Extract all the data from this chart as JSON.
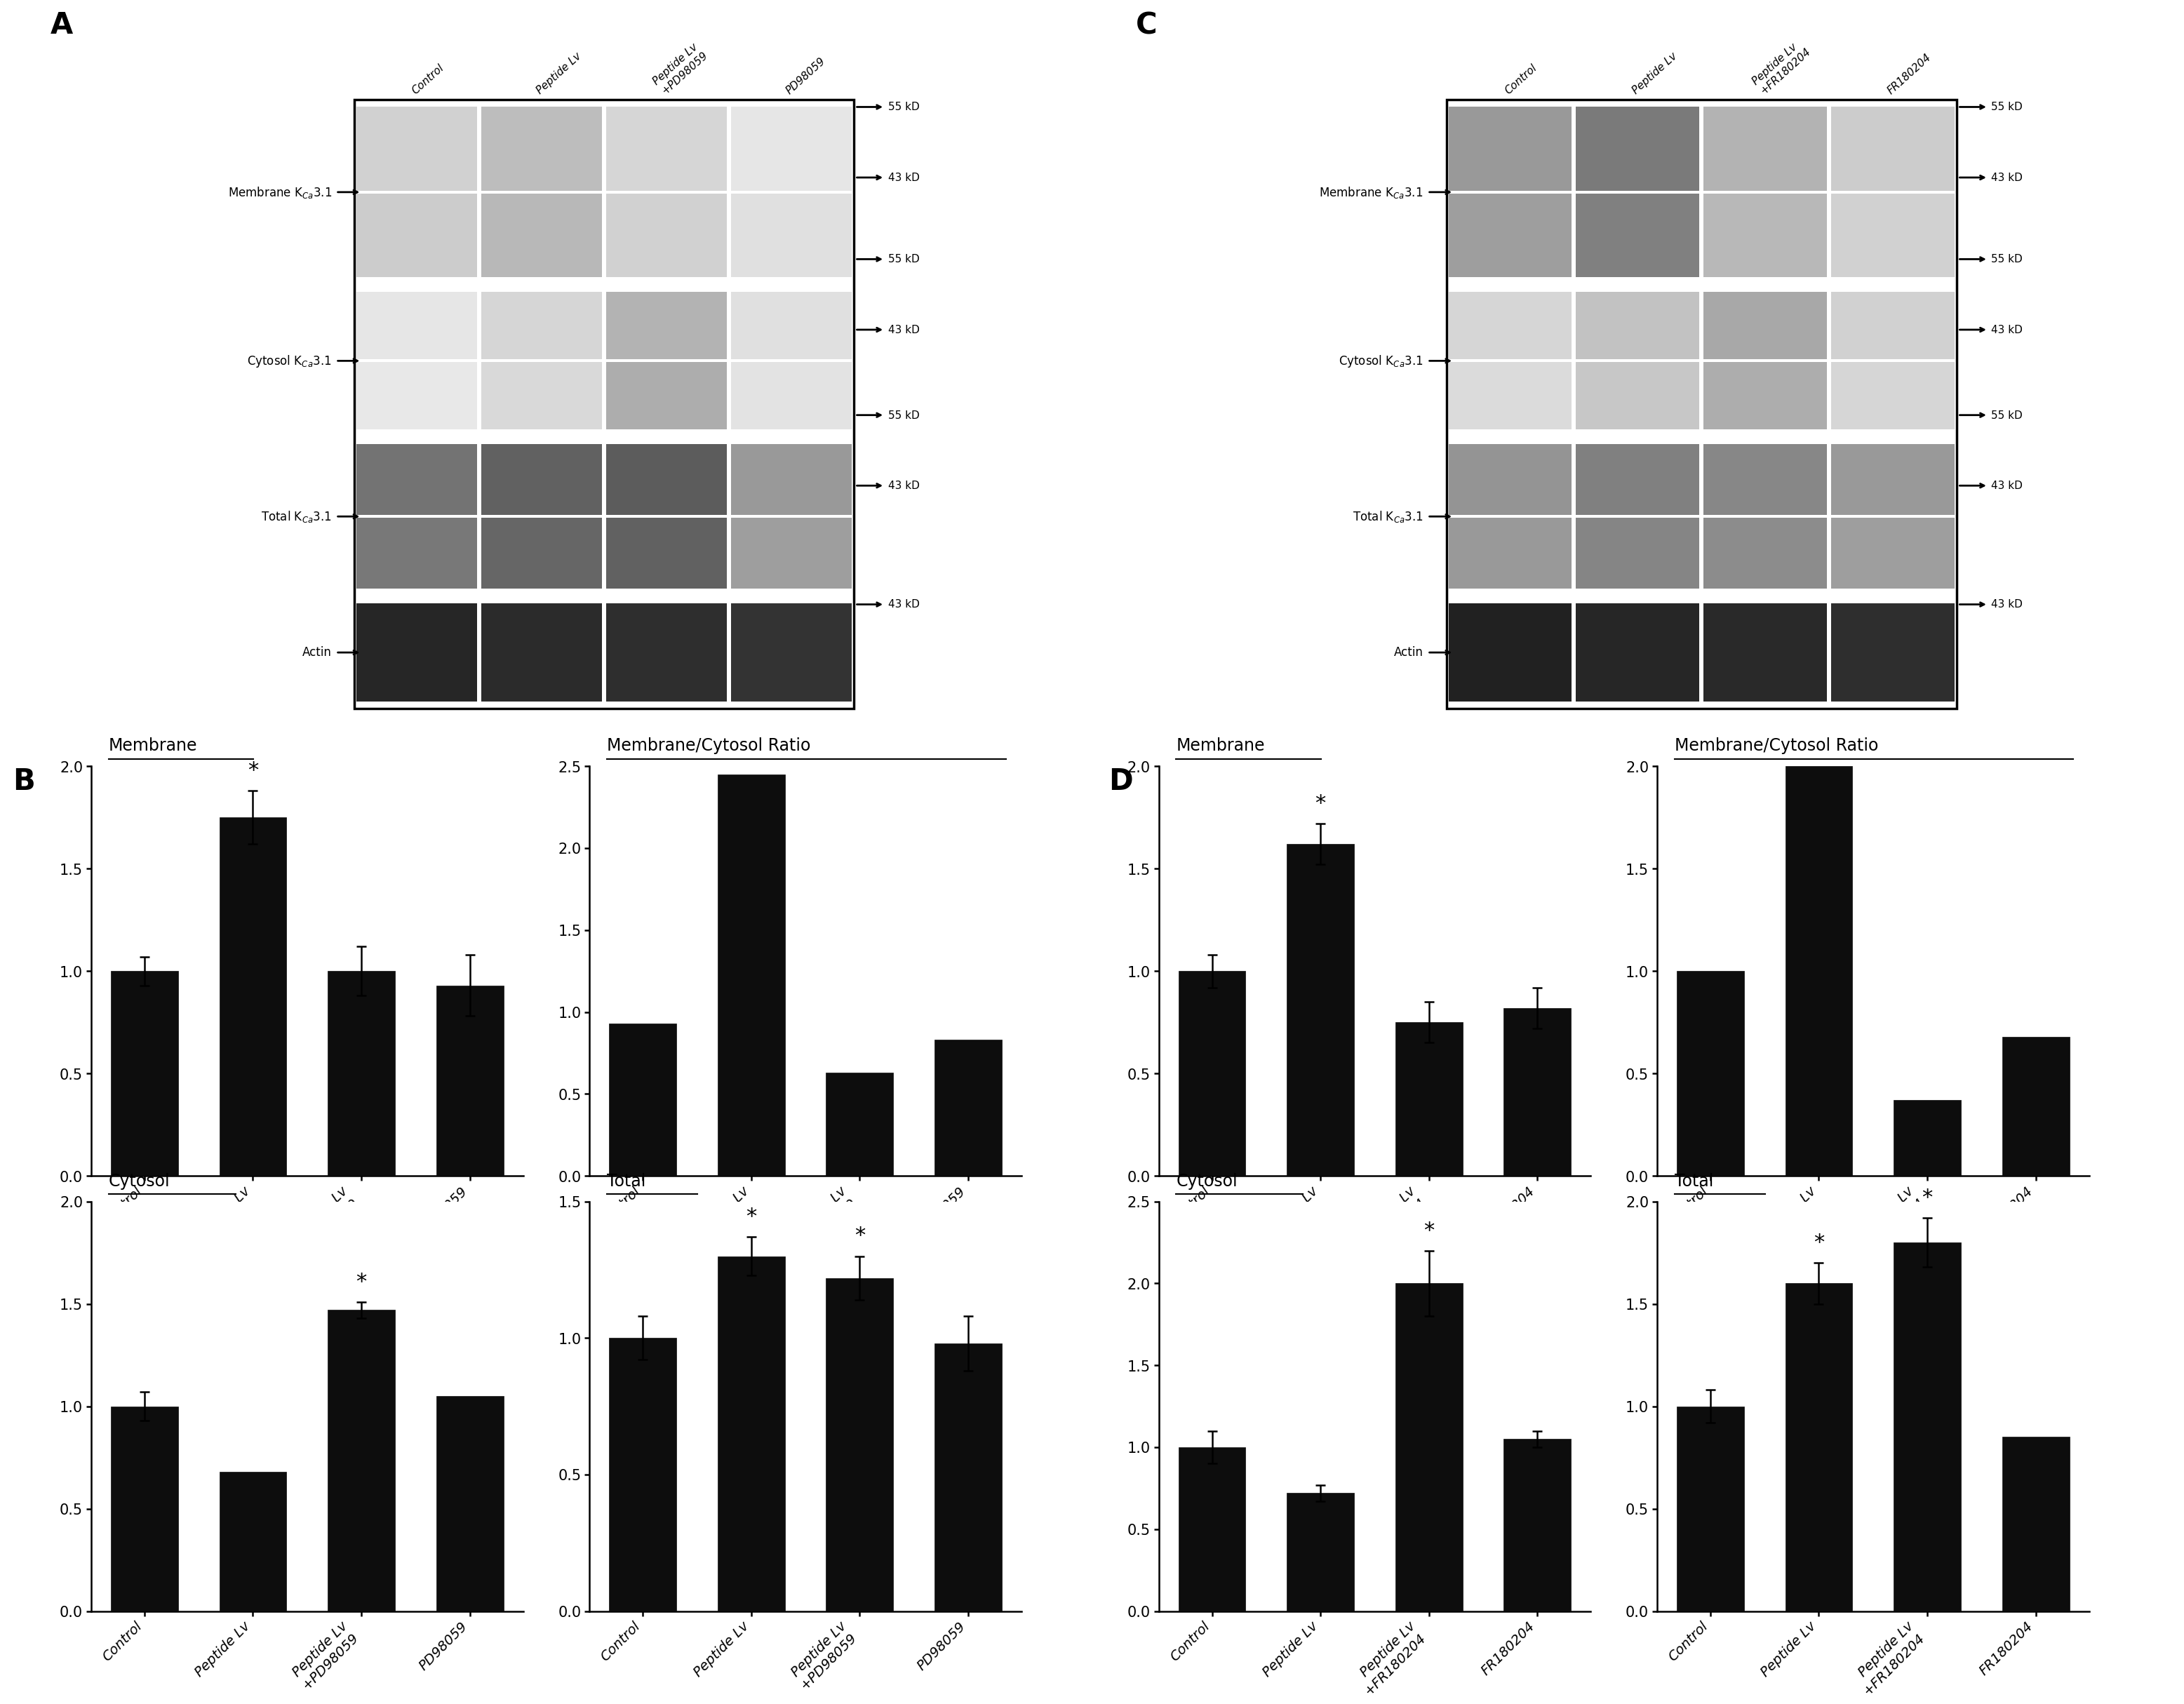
{
  "panel_B_membrane": {
    "values": [
      1.0,
      1.75,
      1.0,
      0.93
    ],
    "errors": [
      0.07,
      0.13,
      0.12,
      0.15
    ],
    "ylim": [
      0.0,
      2.0
    ],
    "yticks": [
      0.0,
      0.5,
      1.0,
      1.5,
      2.0
    ],
    "title": "Membrane",
    "star_idx": [
      1
    ],
    "categories": [
      "Control",
      "Peptide Lv",
      "Peptide Lv\n+PD98059",
      "PD98059"
    ]
  },
  "panel_B_ratio": {
    "values": [
      0.93,
      2.45,
      0.63,
      0.83
    ],
    "errors": [
      0.0,
      0.0,
      0.0,
      0.0
    ],
    "ylim": [
      0.0,
      2.5
    ],
    "yticks": [
      0.0,
      0.5,
      1.0,
      1.5,
      2.0,
      2.5
    ],
    "title": "Membrane/Cytosol Ratio",
    "star_idx": [],
    "categories": [
      "Control",
      "Peptide Lv",
      "Peptide Lv\n+PD98059",
      "PD98059"
    ]
  },
  "panel_B_cytosol": {
    "values": [
      1.0,
      0.68,
      1.47,
      1.05
    ],
    "errors": [
      0.07,
      0.0,
      0.04,
      0.0
    ],
    "ylim": [
      0.0,
      2.0
    ],
    "yticks": [
      0.0,
      0.5,
      1.0,
      1.5,
      2.0
    ],
    "title": "Cytosol",
    "star_idx": [
      2
    ],
    "categories": [
      "Control",
      "Peptide Lv",
      "Peptide Lv\n+PD98059",
      "PD98059"
    ]
  },
  "panel_B_total": {
    "values": [
      1.0,
      1.3,
      1.22,
      0.98
    ],
    "errors": [
      0.08,
      0.07,
      0.08,
      0.1
    ],
    "ylim": [
      0.0,
      1.5
    ],
    "yticks": [
      0.0,
      0.5,
      1.0,
      1.5
    ],
    "title": "Total",
    "star_idx": [
      1,
      2
    ],
    "categories": [
      "Control",
      "Peptide Lv",
      "Peptide Lv\n+PD98059",
      "PD98059"
    ]
  },
  "panel_D_membrane": {
    "values": [
      1.0,
      1.62,
      0.75,
      0.82
    ],
    "errors": [
      0.08,
      0.1,
      0.1,
      0.1
    ],
    "ylim": [
      0.0,
      2.0
    ],
    "yticks": [
      0.0,
      0.5,
      1.0,
      1.5,
      2.0
    ],
    "title": "Membrane",
    "star_idx": [
      1
    ],
    "categories": [
      "Control",
      "Peptide Lv",
      "Peptide Lv\n+FR180204",
      "FR180204"
    ]
  },
  "panel_D_ratio": {
    "values": [
      1.0,
      2.0,
      0.37,
      0.68
    ],
    "errors": [
      0.0,
      0.0,
      0.0,
      0.0
    ],
    "ylim": [
      0.0,
      2.0
    ],
    "yticks": [
      0.0,
      0.5,
      1.0,
      1.5,
      2.0
    ],
    "title": "Membrane/Cytosol Ratio",
    "star_idx": [],
    "categories": [
      "Control",
      "Peptide Lv",
      "Peptide Lv\n+FR180204",
      "FR180204"
    ]
  },
  "panel_D_cytosol": {
    "values": [
      1.0,
      0.72,
      2.0,
      1.05
    ],
    "errors": [
      0.1,
      0.05,
      0.2,
      0.05
    ],
    "ylim": [
      0.0,
      2.5
    ],
    "yticks": [
      0.0,
      0.5,
      1.0,
      1.5,
      2.0,
      2.5
    ],
    "title": "Cytosol",
    "star_idx": [
      2
    ],
    "categories": [
      "Control",
      "Peptide Lv",
      "Peptide Lv\n+FR180204",
      "FR180204"
    ]
  },
  "panel_D_total": {
    "values": [
      1.0,
      1.6,
      1.8,
      0.85
    ],
    "errors": [
      0.08,
      0.1,
      0.12,
      0.0
    ],
    "ylim": [
      0.0,
      2.0
    ],
    "yticks": [
      0.0,
      0.5,
      1.0,
      1.5,
      2.0
    ],
    "title": "Total",
    "star_idx": [
      1,
      2
    ],
    "categories": [
      "Control",
      "Peptide Lv",
      "Peptide Lv\n+FR180204",
      "FR180204"
    ]
  },
  "bar_color": "#0d0d0d",
  "bar_edge_color": "#0d0d0d",
  "tick_fontsize": 15,
  "title_fontsize": 17,
  "star_fontsize": 22,
  "panel_label_fontsize": 30,
  "bg_color": "#ffffff",
  "wb_col_labels_A": [
    "Control",
    "Peptide Lv",
    "Peptide Lv\n+PD98059",
    "PD98059"
  ],
  "wb_col_labels_C": [
    "Control",
    "Peptide Lv",
    "Peptide Lv\n+FR180204",
    "FR180204"
  ],
  "wb_row_labels": [
    "Membrane K$_{Ca}$3.1",
    "Cytosol K$_{Ca}$3.1",
    "Total K$_{Ca}$3.1",
    "Actin"
  ],
  "wb_mw_A": [
    [
      "55 kD",
      0.865
    ],
    [
      "43 kD",
      0.77
    ],
    [
      "55 kD",
      0.66
    ],
    [
      "43 kD",
      0.565
    ],
    [
      "55 kD",
      0.45
    ],
    [
      "43 kD",
      0.355
    ],
    [
      "43 kD",
      0.195
    ]
  ],
  "wb_mw_C": [
    [
      "55 kD",
      0.865
    ],
    [
      "43 kD",
      0.77
    ],
    [
      "55 kD",
      0.66
    ],
    [
      "43 kD",
      0.565
    ],
    [
      "55 kD",
      0.45
    ],
    [
      "43 kD",
      0.355
    ],
    [
      "43 kD",
      0.195
    ]
  ]
}
